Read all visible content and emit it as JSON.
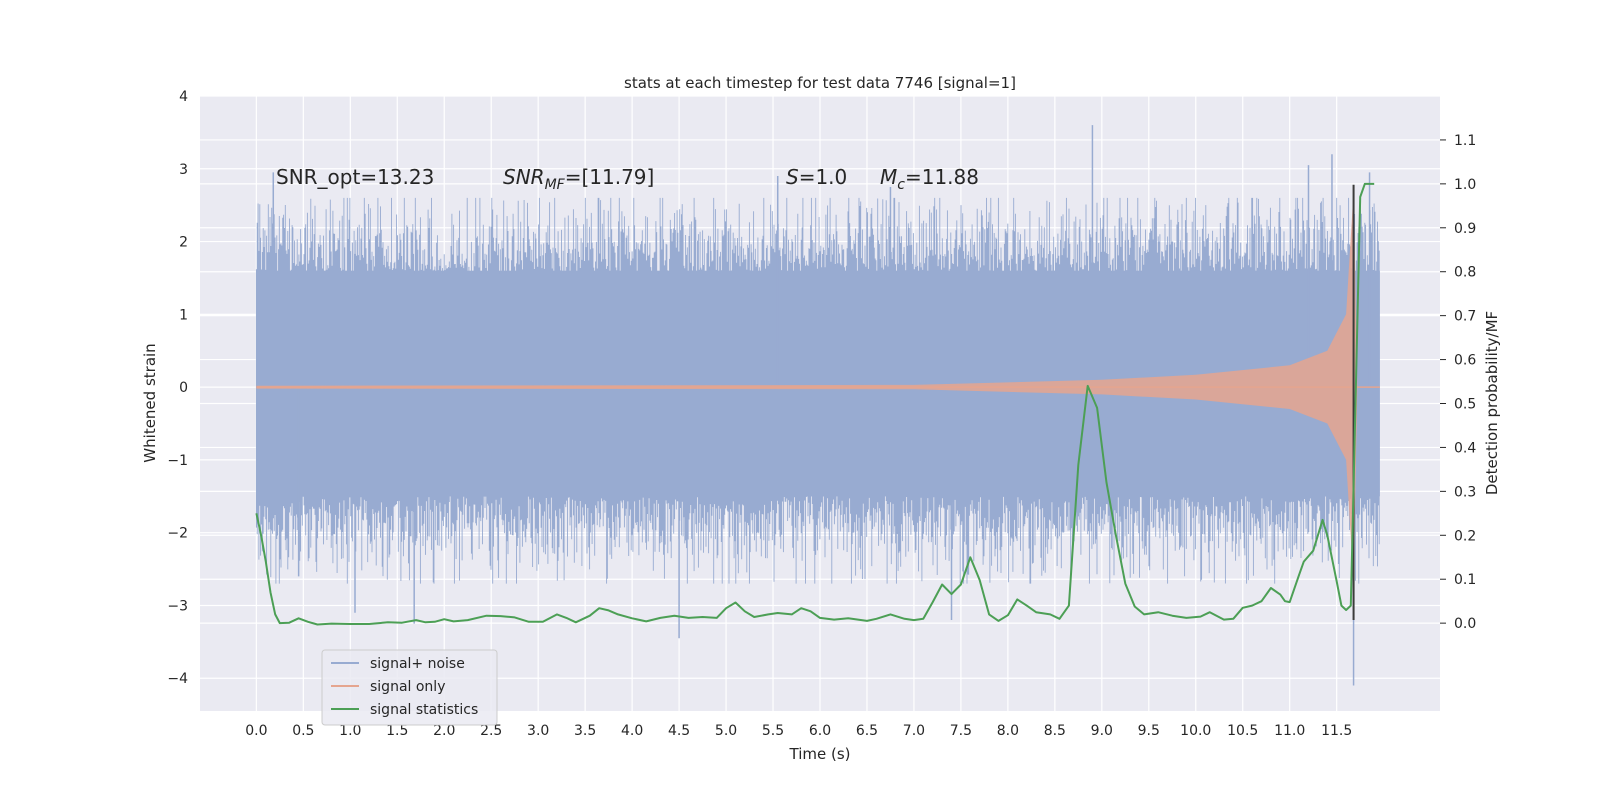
{
  "chart_data": {
    "type": "line",
    "title": "stats at each timestep for test data 7746 [signal=1]",
    "xlabel": "Time (s)",
    "ylabel": "Whitened strain",
    "ylabel_right": "Detection probability/MF",
    "xlim": [
      -0.6,
      12.6
    ],
    "ylim": [
      -4.45,
      4.0
    ],
    "ylim_right": [
      -0.2,
      1.2
    ],
    "grid": true,
    "x_ticks": [
      0.0,
      0.5,
      1.0,
      1.5,
      2.0,
      2.5,
      3.0,
      3.5,
      4.0,
      4.5,
      5.0,
      5.5,
      6.0,
      6.5,
      7.0,
      7.5,
      8.0,
      8.5,
      9.0,
      9.5,
      10.0,
      10.5,
      11.0,
      11.5
    ],
    "x_tick_labels": [
      "0.0",
      "0.5",
      "1.0",
      "1.5",
      "2.0",
      "2.5",
      "3.0",
      "3.5",
      "4.0",
      "4.5",
      "5.0",
      "5.5",
      "6.0",
      "6.5",
      "7.0",
      "7.5",
      "8.0",
      "8.5",
      "9.0",
      "9.5",
      "10.0",
      "10.5",
      "11.0",
      "11.5"
    ],
    "y_ticks": [
      4,
      3,
      2,
      1,
      0,
      -1,
      -2,
      -3,
      -4
    ],
    "y_tick_labels": [
      "4",
      "3",
      "2",
      "1",
      "0",
      "−1",
      "−2",
      "−3",
      "−4"
    ],
    "y_right_ticks": [
      1.1,
      1.0,
      0.9,
      0.8,
      0.7,
      0.6,
      0.5,
      0.4,
      0.3,
      0.2,
      0.1,
      0.0
    ],
    "y_right_tick_labels": [
      "1.1",
      "1.0",
      "0.9",
      "0.8",
      "0.7",
      "0.6",
      "0.5",
      "0.4",
      "0.3",
      "0.2",
      "0.1",
      "0.0"
    ],
    "annotations": {
      "snr_opt": "SNR_opt=13.23",
      "snr_mf_main": "SNR",
      "snr_mf_sub": "MF",
      "snr_mf_value": "=[11.79]",
      "s_main": "S",
      "s_value": "=1.0",
      "mc_main": "M",
      "mc_sub": "c",
      "mc_value": "=11.88"
    },
    "legend_position": "lower-left",
    "series": [
      {
        "name": "signal+ noise",
        "color": "#98abd1",
        "kind": "dense-noise",
        "x_range": [
          0.0,
          11.96
        ],
        "core_band": [
          -1.5,
          1.6
        ],
        "extremes": [
          {
            "x": 0.18,
            "y": 2.95
          },
          {
            "x": 0.45,
            "y": -2.6
          },
          {
            "x": 1.05,
            "y": -3.1
          },
          {
            "x": 1.68,
            "y": -3.25
          },
          {
            "x": 4.5,
            "y": -3.45
          },
          {
            "x": 5.55,
            "y": 2.9
          },
          {
            "x": 7.4,
            "y": -3.2
          },
          {
            "x": 6.75,
            "y": 2.75
          },
          {
            "x": 8.9,
            "y": 3.6
          },
          {
            "x": 11.2,
            "y": 3.05
          },
          {
            "x": 11.45,
            "y": 3.2
          },
          {
            "x": 11.68,
            "y": -4.1
          },
          {
            "x": 11.85,
            "y": 2.95
          }
        ]
      },
      {
        "name": "signal only",
        "color": "#e5a58f",
        "kind": "chirp-envelope",
        "x_range": [
          0.0,
          11.96
        ],
        "merger_time": 11.68,
        "envelope": [
          {
            "x": 0.0,
            "y": 0.02
          },
          {
            "x": 7.0,
            "y": 0.03
          },
          {
            "x": 9.0,
            "y": 0.1
          },
          {
            "x": 10.0,
            "y": 0.17
          },
          {
            "x": 11.0,
            "y": 0.3
          },
          {
            "x": 11.4,
            "y": 0.5
          },
          {
            "x": 11.6,
            "y": 1.0
          },
          {
            "x": 11.68,
            "y": 2.7
          },
          {
            "x": 11.72,
            "y": 0.05
          }
        ]
      },
      {
        "name": "signal statistics",
        "color": "#4c9f55",
        "axis": "right",
        "points": [
          [
            0.0,
            0.25
          ],
          [
            0.05,
            0.2
          ],
          [
            0.1,
            0.14
          ],
          [
            0.15,
            0.07
          ],
          [
            0.2,
            0.02
          ],
          [
            0.25,
            0.0
          ],
          [
            0.35,
            0.001
          ],
          [
            0.45,
            0.011
          ],
          [
            0.55,
            0.003
          ],
          [
            0.65,
            -0.003
          ],
          [
            0.8,
            -0.001
          ],
          [
            1.0,
            -0.002
          ],
          [
            1.2,
            -0.002
          ],
          [
            1.4,
            0.002
          ],
          [
            1.55,
            0.001
          ],
          [
            1.7,
            0.007
          ],
          [
            1.8,
            0.002
          ],
          [
            1.9,
            0.003
          ],
          [
            2.0,
            0.009
          ],
          [
            2.1,
            0.004
          ],
          [
            2.25,
            0.007
          ],
          [
            2.45,
            0.017
          ],
          [
            2.6,
            0.016
          ],
          [
            2.75,
            0.013
          ],
          [
            2.9,
            0.003
          ],
          [
            3.05,
            0.003
          ],
          [
            3.2,
            0.02
          ],
          [
            3.3,
            0.012
          ],
          [
            3.4,
            0.002
          ],
          [
            3.55,
            0.017
          ],
          [
            3.65,
            0.034
          ],
          [
            3.75,
            0.029
          ],
          [
            3.85,
            0.02
          ],
          [
            4.0,
            0.011
          ],
          [
            4.15,
            0.004
          ],
          [
            4.3,
            0.012
          ],
          [
            4.45,
            0.017
          ],
          [
            4.6,
            0.012
          ],
          [
            4.75,
            0.014
          ],
          [
            4.9,
            0.012
          ],
          [
            5.0,
            0.034
          ],
          [
            5.1,
            0.047
          ],
          [
            5.2,
            0.027
          ],
          [
            5.3,
            0.014
          ],
          [
            5.45,
            0.02
          ],
          [
            5.55,
            0.023
          ],
          [
            5.7,
            0.02
          ],
          [
            5.8,
            0.034
          ],
          [
            5.9,
            0.027
          ],
          [
            6.0,
            0.012
          ],
          [
            6.15,
            0.008
          ],
          [
            6.3,
            0.011
          ],
          [
            6.5,
            0.005
          ],
          [
            6.6,
            0.01
          ],
          [
            6.75,
            0.02
          ],
          [
            6.9,
            0.01
          ],
          [
            7.0,
            0.007
          ],
          [
            7.1,
            0.01
          ],
          [
            7.2,
            0.048
          ],
          [
            7.3,
            0.088
          ],
          [
            7.4,
            0.066
          ],
          [
            7.5,
            0.088
          ],
          [
            7.6,
            0.15
          ],
          [
            7.7,
            0.098
          ],
          [
            7.8,
            0.02
          ],
          [
            7.9,
            0.005
          ],
          [
            8.0,
            0.018
          ],
          [
            8.1,
            0.054
          ],
          [
            8.2,
            0.04
          ],
          [
            8.3,
            0.025
          ],
          [
            8.45,
            0.02
          ],
          [
            8.55,
            0.01
          ],
          [
            8.65,
            0.04
          ],
          [
            8.75,
            0.36
          ],
          [
            8.85,
            0.54
          ],
          [
            8.95,
            0.49
          ],
          [
            9.05,
            0.32
          ],
          [
            9.15,
            0.2
          ],
          [
            9.25,
            0.09
          ],
          [
            9.35,
            0.038
          ],
          [
            9.45,
            0.02
          ],
          [
            9.6,
            0.025
          ],
          [
            9.75,
            0.017
          ],
          [
            9.9,
            0.012
          ],
          [
            10.05,
            0.015
          ],
          [
            10.15,
            0.025
          ],
          [
            10.3,
            0.008
          ],
          [
            10.4,
            0.01
          ],
          [
            10.5,
            0.035
          ],
          [
            10.6,
            0.04
          ],
          [
            10.7,
            0.05
          ],
          [
            10.8,
            0.08
          ],
          [
            10.9,
            0.065
          ],
          [
            10.95,
            0.05
          ],
          [
            11.0,
            0.048
          ],
          [
            11.1,
            0.11
          ],
          [
            11.15,
            0.14
          ],
          [
            11.25,
            0.165
          ],
          [
            11.35,
            0.235
          ],
          [
            11.4,
            0.2
          ],
          [
            11.5,
            0.095
          ],
          [
            11.55,
            0.04
          ],
          [
            11.6,
            0.03
          ],
          [
            11.65,
            0.04
          ],
          [
            11.7,
            0.5
          ],
          [
            11.75,
            0.97
          ],
          [
            11.8,
            1.0
          ],
          [
            11.9,
            1.0
          ]
        ]
      }
    ]
  }
}
